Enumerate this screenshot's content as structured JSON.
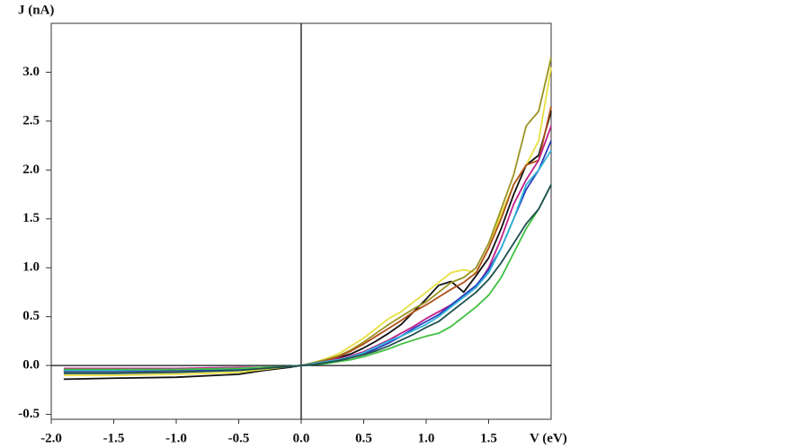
{
  "chart_data": {
    "type": "line",
    "x_label": "V (eV)",
    "y_label": "J (nA)",
    "x": [
      -1.9,
      -1.5,
      -1.0,
      -0.5,
      -0.3,
      -0.1,
      0,
      0.1,
      0.2,
      0.3,
      0.4,
      0.5,
      0.6,
      0.7,
      0.8,
      0.9,
      1.0,
      1.1,
      1.2,
      1.3,
      1.4,
      1.5,
      1.6,
      1.7,
      1.8,
      1.9,
      2.0
    ],
    "series": [
      {
        "color": "#111111",
        "values": [
          -0.14,
          -0.13,
          -0.12,
          -0.09,
          -0.05,
          -0.02,
          0,
          0.02,
          0.05,
          0.08,
          0.12,
          0.18,
          0.25,
          0.33,
          0.42,
          0.55,
          0.68,
          0.82,
          0.86,
          0.75,
          0.92,
          1.1,
          1.4,
          1.75,
          2.05,
          2.15,
          2.6
        ]
      },
      {
        "color": "#e8e040",
        "values": [
          -0.1,
          -0.1,
          -0.09,
          -0.07,
          -0.04,
          -0.01,
          0,
          0.03,
          0.07,
          0.12,
          0.2,
          0.28,
          0.38,
          0.48,
          0.55,
          0.65,
          0.75,
          0.85,
          0.95,
          0.98,
          0.95,
          1.2,
          1.55,
          1.85,
          2.05,
          2.3,
          3.05
        ]
      },
      {
        "color": "#9a9420",
        "values": [
          -0.07,
          -0.07,
          -0.06,
          -0.04,
          -0.03,
          -0.01,
          0,
          0.03,
          0.06,
          0.1,
          0.16,
          0.24,
          0.33,
          0.42,
          0.5,
          0.58,
          0.65,
          0.75,
          0.85,
          0.9,
          1.0,
          1.25,
          1.6,
          1.95,
          2.45,
          2.6,
          3.15
        ]
      },
      {
        "color": "#b0501a",
        "values": [
          -0.05,
          -0.05,
          -0.05,
          -0.04,
          -0.02,
          -0.01,
          0,
          0.02,
          0.05,
          0.09,
          0.15,
          0.22,
          0.3,
          0.38,
          0.46,
          0.55,
          0.62,
          0.7,
          0.78,
          0.85,
          0.95,
          1.2,
          1.5,
          1.85,
          2.05,
          2.1,
          2.65
        ]
      },
      {
        "color": "#c0208a",
        "values": [
          -0.03,
          -0.03,
          -0.03,
          -0.02,
          -0.02,
          -0.01,
          0,
          0.02,
          0.04,
          0.07,
          0.1,
          0.14,
          0.2,
          0.26,
          0.33,
          0.4,
          0.48,
          0.55,
          0.62,
          0.7,
          0.8,
          1.0,
          1.3,
          1.65,
          1.9,
          2.1,
          2.45
        ]
      },
      {
        "color": "#2a3cc0",
        "values": [
          -0.06,
          -0.06,
          -0.05,
          -0.04,
          -0.02,
          -0.01,
          0,
          0.01,
          0.03,
          0.05,
          0.08,
          0.12,
          0.17,
          0.23,
          0.3,
          0.38,
          0.45,
          0.52,
          0.62,
          0.72,
          0.82,
          0.98,
          1.2,
          1.5,
          1.8,
          2.0,
          2.3
        ]
      },
      {
        "color": "#30b4d8",
        "values": [
          -0.05,
          -0.05,
          -0.04,
          -0.03,
          -0.02,
          -0.01,
          0,
          0.02,
          0.04,
          0.06,
          0.09,
          0.13,
          0.19,
          0.25,
          0.3,
          0.36,
          0.42,
          0.5,
          0.6,
          0.7,
          0.8,
          0.95,
          1.2,
          1.5,
          1.85,
          2.0,
          2.2
        ]
      },
      {
        "color": "#40c040",
        "values": [
          -0.04,
          -0.04,
          -0.04,
          -0.03,
          -0.02,
          -0.01,
          0,
          0.01,
          0.02,
          0.04,
          0.06,
          0.09,
          0.13,
          0.17,
          0.22,
          0.26,
          0.3,
          0.33,
          0.4,
          0.5,
          0.6,
          0.72,
          0.9,
          1.15,
          1.4,
          1.6,
          1.85
        ]
      },
      {
        "color": "#1f4f4f",
        "values": [
          -0.08,
          -0.08,
          -0.07,
          -0.05,
          -0.03,
          -0.01,
          0,
          0.01,
          0.03,
          0.05,
          0.08,
          0.11,
          0.15,
          0.2,
          0.26,
          0.32,
          0.39,
          0.45,
          0.55,
          0.65,
          0.75,
          0.88,
          1.05,
          1.25,
          1.45,
          1.6,
          1.85
        ]
      }
    ],
    "xlim": [
      -2.0,
      2.0
    ],
    "ylim": [
      -0.55,
      3.5
    ],
    "xticks": [
      {
        "value": -2.0,
        "label": "-2.0"
      },
      -1.5,
      {
        "value": -1.0,
        "label": "-1.0"
      },
      -0.5,
      {
        "value": 0,
        "label": "0.0"
      },
      0.5,
      {
        "value": 1.0,
        "label": "1.0"
      },
      1.5
    ],
    "yticks": [
      -0.5,
      {
        "value": 0,
        "label": "0.0"
      },
      0.5,
      {
        "value": 1.0,
        "label": "1.0"
      },
      1.5,
      {
        "value": 2.0,
        "label": "2.0"
      },
      2.5,
      {
        "value": 3.0,
        "label": "3.0"
      }
    ],
    "zero_lines": true
  }
}
